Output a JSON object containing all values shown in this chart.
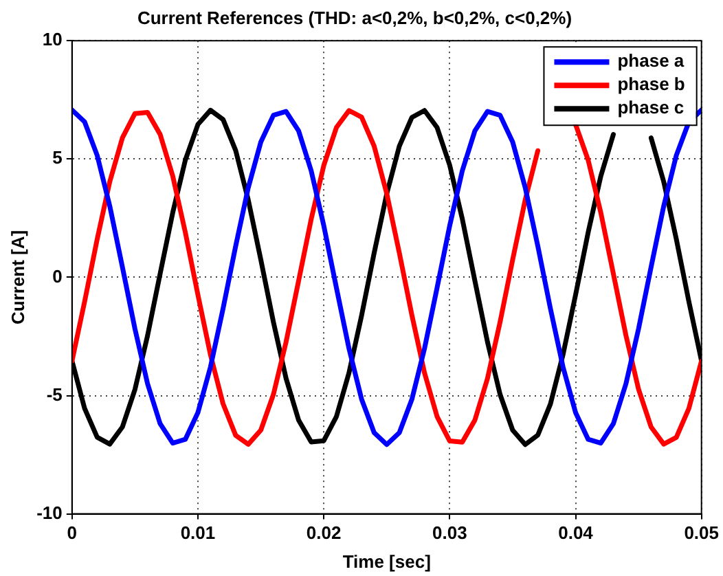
{
  "chart_data": {
    "type": "line",
    "title": "Current References (THD: a<0,2%, b<0,2%, c<0,2%)",
    "xlabel": "Time [sec]",
    "ylabel": "Current [A]",
    "x": [
      0,
      0.001,
      0.002,
      0.003,
      0.004,
      0.005,
      0.006,
      0.007,
      0.008,
      0.009,
      0.01,
      0.011,
      0.012,
      0.013,
      0.014,
      0.015,
      0.016,
      0.017,
      0.018,
      0.019,
      0.02,
      0.021,
      0.022,
      0.023,
      0.024,
      0.025,
      0.026,
      0.027,
      0.028,
      0.029,
      0.03,
      0.031,
      0.032,
      0.033,
      0.034,
      0.035,
      0.036,
      0.037,
      0.038,
      0.039,
      0.04,
      0.041,
      0.042,
      0.043,
      0.044,
      0.045,
      0.046,
      0.047,
      0.048,
      0.049,
      0.05
    ],
    "series": [
      {
        "name": "phase a",
        "color": "#0000ff",
        "values": [
          7.07,
          6.57,
          5.15,
          3.01,
          0.44,
          -2.18,
          -4.5,
          -6.19,
          -7.01,
          -6.85,
          -5.72,
          -3.79,
          -1.32,
          1.32,
          3.79,
          5.72,
          6.85,
          7.01,
          6.19,
          4.5,
          2.18,
          -0.44,
          -3.01,
          -5.15,
          -6.57,
          -7.07,
          -6.57,
          -5.15,
          -3.01,
          -0.44,
          2.18,
          4.5,
          6.19,
          7.01,
          6.85,
          5.72,
          3.79,
          1.32,
          -1.32,
          -3.79,
          -5.72,
          -6.85,
          -7.01,
          -6.19,
          -4.5,
          -2.18,
          0.44,
          3.01,
          5.15,
          6.57,
          7.07
        ]
      },
      {
        "name": "phase b",
        "color": "#ff0000",
        "values": [
          -3.54,
          -1.03,
          1.61,
          4.04,
          5.89,
          6.92,
          6.97,
          6.04,
          4.28,
          1.9,
          -0.74,
          -3.28,
          -5.35,
          -6.68,
          -7.06,
          -6.46,
          -4.95,
          -2.74,
          -0.15,
          2.46,
          4.73,
          6.33,
          7.05,
          6.77,
          5.54,
          3.54,
          1.03,
          -1.61,
          -4.04,
          -5.89,
          -6.92,
          -6.97,
          -6.04,
          -4.28,
          -1.9,
          0.74,
          3.28,
          5.35,
          null,
          null,
          6.46,
          4.95,
          2.74,
          0.15,
          -2.46,
          -4.73,
          -6.33,
          -7.05,
          -6.77,
          -5.54,
          -3.54
        ]
      },
      {
        "name": "phase c",
        "color": "#000000",
        "values": [
          -3.54,
          -5.54,
          -6.76,
          -7.05,
          -6.33,
          -4.74,
          -2.47,
          0.15,
          2.73,
          4.95,
          6.46,
          7.06,
          6.67,
          5.36,
          3.27,
          0.74,
          -1.9,
          -4.27,
          -6.04,
          -6.96,
          -6.91,
          -5.89,
          -4.04,
          -1.62,
          1.03,
          3.53,
          5.54,
          6.76,
          7.05,
          6.33,
          4.74,
          2.47,
          -0.15,
          -2.73,
          -4.95,
          -6.46,
          -7.07,
          -6.67,
          -5.36,
          -3.27,
          -0.74,
          1.9,
          4.27,
          6.04,
          null,
          null,
          5.89,
          4.04,
          1.62,
          -1.03,
          -3.53
        ]
      }
    ],
    "xlim": [
      0,
      0.05
    ],
    "xticks": [
      0,
      0.01,
      0.02,
      0.03,
      0.04,
      0.05
    ],
    "ylim": [
      -10,
      10
    ],
    "yticks": [
      -10,
      -5,
      0,
      5,
      10
    ],
    "grid": true,
    "legend": "top right",
    "marker": "none",
    "line_style": "solid"
  }
}
